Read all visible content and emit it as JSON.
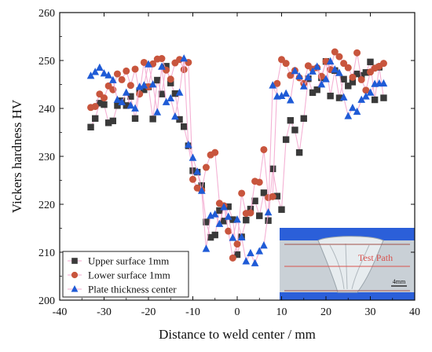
{
  "chart_data": {
    "type": "scatter",
    "title": "",
    "xlabel": "Distance to weld center / mm",
    "ylabel": "Vickers hardness HV",
    "xlim": [
      -40,
      40
    ],
    "ylim": [
      200,
      260
    ],
    "xticks": [
      -40,
      -30,
      -20,
      -10,
      0,
      10,
      20,
      30,
      40
    ],
    "yticks": [
      200,
      210,
      220,
      230,
      240,
      250,
      260
    ],
    "grid": false,
    "legend_position": "bottom-left",
    "colors": {
      "upper": "#3a3a3a",
      "lower": "#c8553d",
      "center": "#1f5bd6",
      "halo": "#f3a8cf"
    },
    "series": [
      {
        "name": "Upper surface 1mm",
        "marker": "square",
        "x": [
          -33,
          -32,
          -31,
          -30,
          -29,
          -28,
          -27,
          -26,
          -25,
          -24,
          -23,
          -22,
          -21,
          -20,
          -19,
          -18,
          -17,
          -16,
          -15,
          -14,
          -13,
          -12,
          -11,
          -10,
          -9,
          -8,
          -7,
          -6,
          -5,
          -4,
          -3,
          -2,
          -1,
          0,
          1,
          2,
          3,
          4,
          5,
          6,
          7,
          8,
          9,
          10,
          11,
          12,
          13,
          14,
          15,
          16,
          17,
          18,
          19,
          20,
          21,
          22,
          23,
          24,
          25,
          26,
          27,
          28,
          29,
          30,
          31,
          32,
          33
        ],
        "y": [
          236.1,
          237.9,
          241.1,
          240.8,
          237.0,
          237.4,
          240.6,
          241.6,
          240.6,
          242.5,
          237.9,
          243.7,
          243.9,
          244.5,
          237.8,
          245.9,
          243.0,
          248.8,
          245.3,
          243.1,
          237.7,
          236.2,
          232.2,
          227.0,
          226.7,
          223.9,
          216.3,
          213.1,
          213.6,
          218.7,
          216.5,
          219.5,
          216.8,
          209.5,
          213.2,
          216.7,
          219.0,
          220.7,
          217.6,
          222.4,
          216.6,
          227.4,
          221.7,
          218.9,
          233.5,
          237.5,
          235.5,
          230.8,
          237.9,
          246.2,
          243.3,
          243.9,
          246.4,
          249.8,
          242.6,
          247.9,
          242.2,
          246.1,
          244.7,
          245.5,
          247.2,
          246.9,
          247.5,
          249.7,
          241.8,
          248.6,
          242.2
        ]
      },
      {
        "name": "Lower surface 1mm",
        "marker": "circle",
        "x": [
          -33,
          -32,
          -31,
          -30,
          -29,
          -28,
          -27,
          -26,
          -25,
          -24,
          -23,
          -22,
          -21,
          -20,
          -19,
          -18,
          -17,
          -16,
          -15,
          -14,
          -13,
          -12,
          -11,
          -10,
          -9,
          -8,
          -7,
          -6,
          -5,
          -4,
          -3,
          -2,
          -1,
          0,
          1,
          2,
          3,
          4,
          5,
          6,
          7,
          8,
          9,
          10,
          11,
          12,
          13,
          14,
          15,
          16,
          17,
          18,
          19,
          20,
          21,
          22,
          23,
          24,
          25,
          26,
          27,
          28,
          29,
          30,
          31,
          32,
          33
        ],
        "y": [
          240.2,
          240.4,
          243.0,
          242.2,
          244.7,
          243.9,
          247.2,
          246.0,
          247.8,
          244.8,
          248.2,
          243.0,
          249.6,
          244.5,
          249.3,
          250.3,
          250.4,
          248.0,
          246.1,
          249.5,
          250.2,
          248.1,
          249.6,
          225.2,
          223.4,
          222.9,
          227.7,
          230.3,
          230.8,
          220.2,
          219.7,
          214.4,
          208.8,
          211.7,
          222.3,
          218.1,
          218.2,
          224.8,
          224.6,
          231.4,
          221.4,
          221.6,
          245.2,
          250.2,
          249.4,
          246.9,
          247.9,
          246.4,
          245.2,
          248.9,
          248.2,
          248.5,
          246.7,
          249.8,
          248.1,
          251.8,
          250.8,
          249.4,
          248.5,
          246.5,
          251.6,
          246.0,
          243.8,
          247.6,
          248.4,
          248.8,
          249.4
        ]
      },
      {
        "name": "Plate thickness center",
        "marker": "triangle",
        "x": [
          -33,
          -32,
          -31,
          -30,
          -29,
          -28,
          -27,
          -26,
          -25,
          -24,
          -23,
          -22,
          -21,
          -20,
          -19,
          -18,
          -17,
          -16,
          -15,
          -14,
          -13,
          -12,
          -11,
          -10,
          -9,
          -8,
          -7,
          -6,
          -5,
          -4,
          -3,
          -2,
          -1,
          0,
          1,
          2,
          3,
          4,
          5,
          6,
          7,
          8,
          9,
          10,
          11,
          12,
          13,
          14,
          15,
          16,
          17,
          18,
          19,
          20,
          21,
          22,
          23,
          24,
          25,
          26,
          27,
          28,
          29,
          30,
          31,
          32,
          33
        ],
        "y": [
          246.8,
          247.6,
          248.5,
          247.3,
          246.9,
          245.9,
          241.8,
          241.3,
          243.3,
          240.6,
          240.0,
          244.5,
          244.8,
          249.2,
          245.0,
          239.2,
          248.7,
          241.3,
          242.1,
          238.3,
          243.3,
          250.4,
          232.4,
          229.7,
          226.8,
          222.8,
          210.7,
          217.6,
          217.9,
          215.9,
          219.4,
          217.4,
          213.0,
          216.8,
          213.1,
          208.1,
          209.8,
          207.7,
          210.2,
          211.4,
          218.3,
          244.8,
          242.5,
          242.6,
          243.1,
          241.7,
          247.8,
          246.7,
          244.6,
          246.5,
          247.7,
          248.7,
          245.0,
          246.1,
          249.8,
          248.1,
          247.4,
          242.3,
          238.4,
          240.1,
          239.3,
          241.8,
          242.5,
          243.3,
          245.1,
          245.2,
          245.2
        ]
      }
    ]
  },
  "inset": {
    "label": "Test Path",
    "scale_label": "4mm",
    "colors": {
      "plate": "#2b5fd9",
      "weld": "#cfd6dc",
      "path": "#d9534f",
      "guide": "#a0504a"
    }
  }
}
